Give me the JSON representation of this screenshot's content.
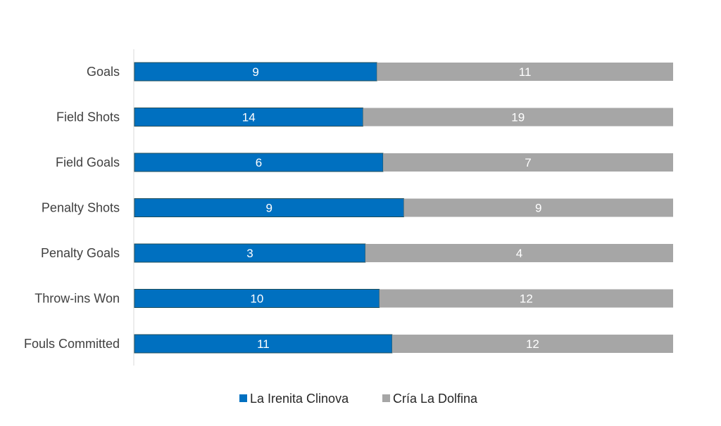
{
  "chart_data": {
    "type": "bar",
    "orientation": "horizontal",
    "stacking": "percent",
    "categories": [
      "Goals",
      "Field Shots",
      "Field Goals",
      "Penalty Shots",
      "Penalty Goals",
      "Throw-ins Won",
      "Fouls Committed"
    ],
    "series": [
      {
        "name": "La Irenita Clinova",
        "color": "#0070c0",
        "values": [
          9,
          14,
          6,
          9,
          3,
          10,
          11
        ]
      },
      {
        "name": "Cría La Dolfina",
        "color": "#a6a6a6",
        "values": [
          11,
          19,
          7,
          9,
          4,
          12,
          12
        ]
      }
    ],
    "title": "",
    "xlabel": "",
    "ylabel": "",
    "grid": false,
    "data_labels": true,
    "legend_position": "bottom"
  }
}
